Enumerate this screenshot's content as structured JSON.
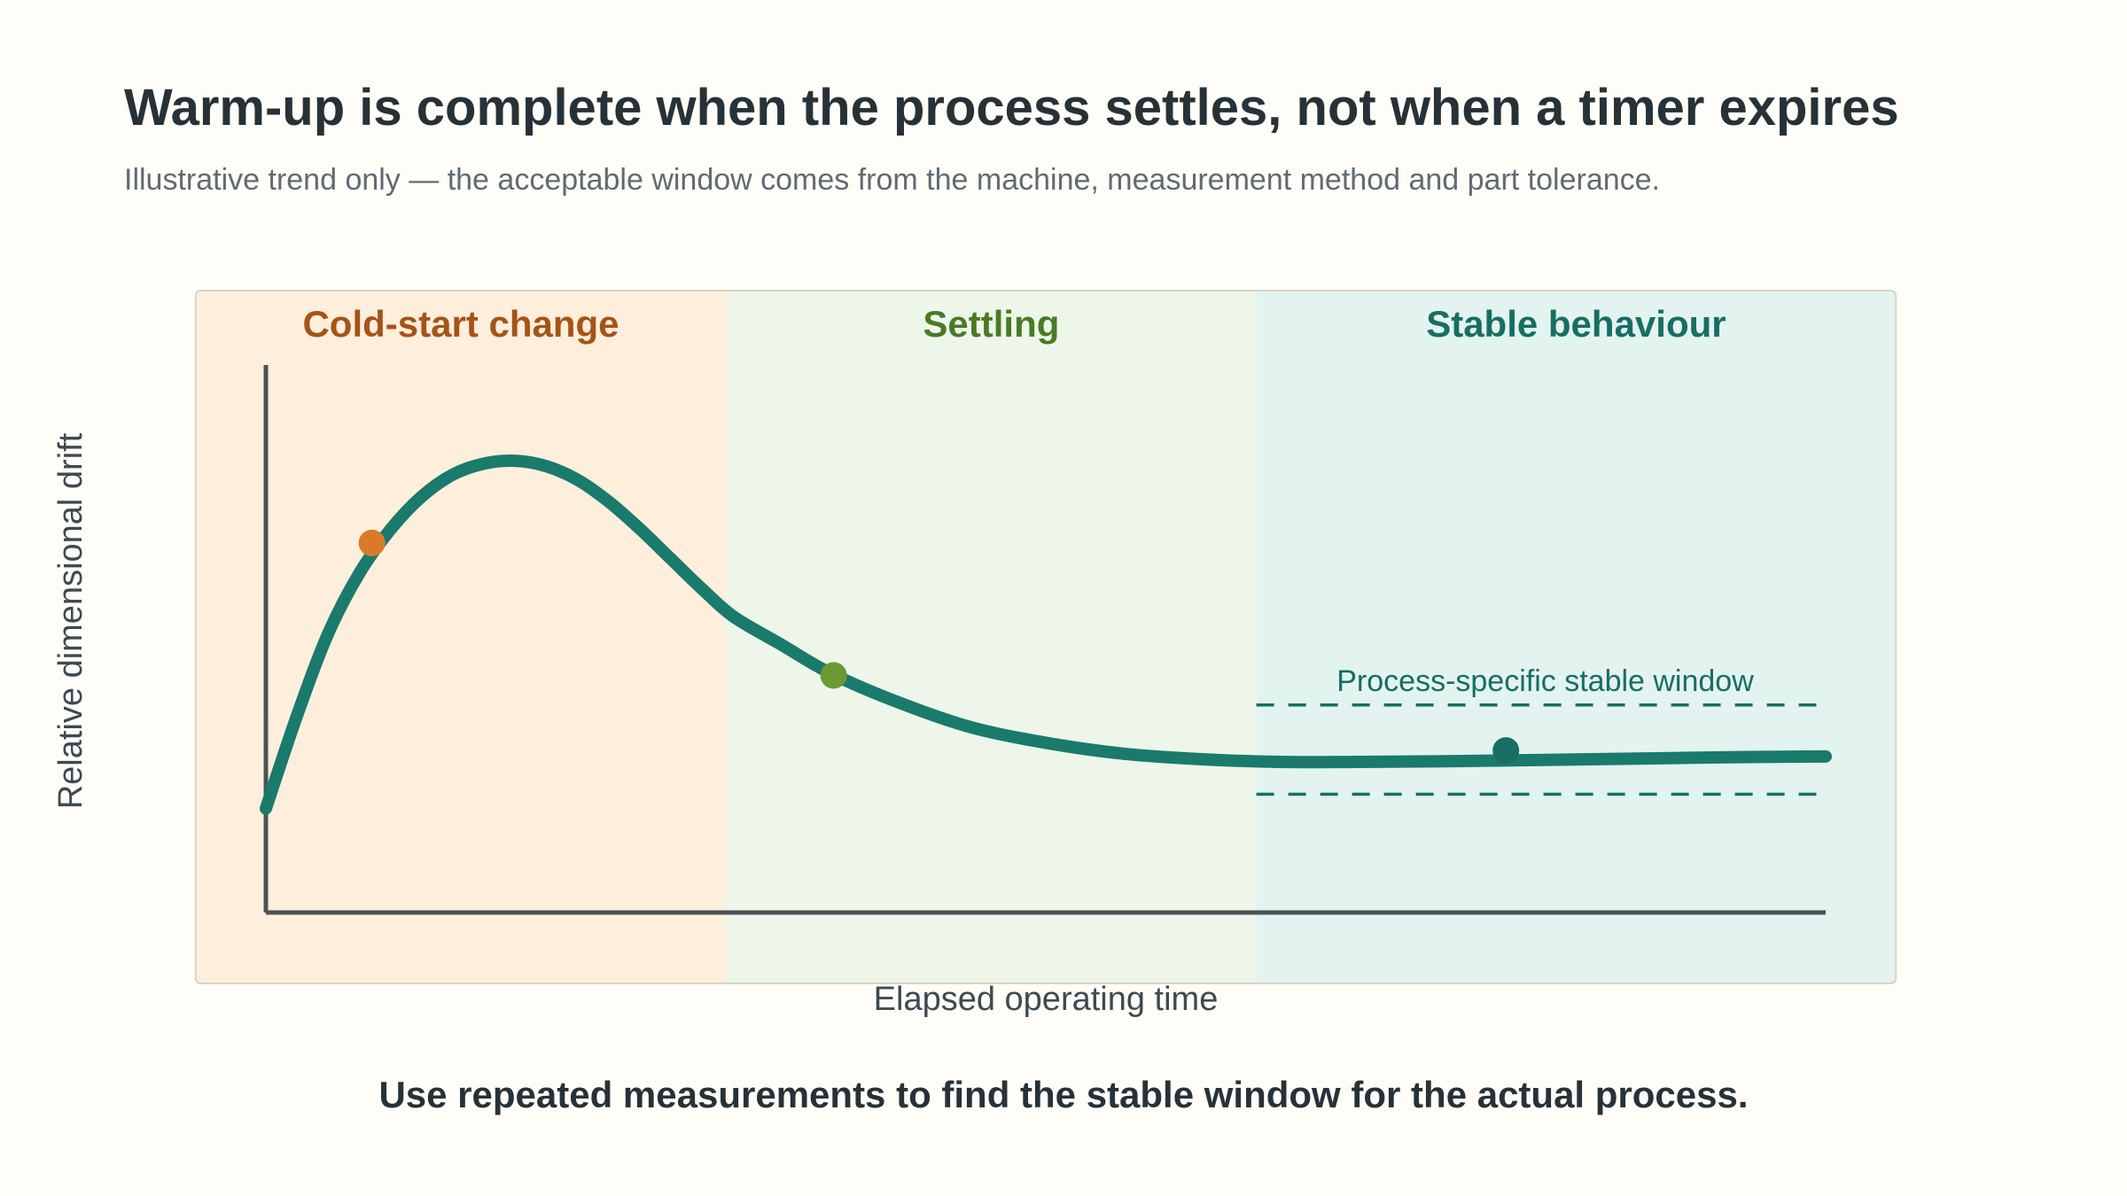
{
  "title": "Warm-up is complete when the process settles, not when a timer expires",
  "subtitle": "Illustrative trend only — the acceptable window comes from the machine, measurement method and part tolerance.",
  "takeaway": "Use repeated measurements to find the stable window for the actual process.",
  "chart_data": {
    "type": "line",
    "xlabel": "Elapsed operating time",
    "ylabel": "Relative dimensional drift",
    "xlim": [
      0,
      100
    ],
    "ylim": [
      0,
      100
    ],
    "grid": false,
    "phases": [
      {
        "label": "Cold-start change",
        "x_start": -4.5,
        "x_end": 29.5,
        "fill": "#fdefdc",
        "label_color": "#a65316"
      },
      {
        "label": "Settling",
        "x_start": 29.5,
        "x_end": 63.5,
        "fill": "#eef6ea",
        "label_color": "#4b7a26"
      },
      {
        "label": "Stable behaviour",
        "x_start": 63.5,
        "x_end": 104.5,
        "fill": "#e3f3f0",
        "label_color": "#176e63"
      }
    ],
    "series": [
      {
        "color": "#1a7a6c",
        "x": [
          0,
          2,
          4,
          6,
          8,
          10,
          12,
          14,
          16,
          18,
          20,
          22,
          24,
          26,
          28,
          30,
          33,
          36,
          40,
          45,
          50,
          55,
          60,
          65,
          70,
          75,
          80,
          85,
          90,
          95,
          100
        ],
        "y": [
          19,
          36,
          51,
          62,
          70,
          76,
          80,
          82,
          82.5,
          81.5,
          79,
          75,
          70,
          64.5,
          59,
          54,
          49,
          44,
          39,
          34,
          31,
          29,
          28,
          27.5,
          27.5,
          27.6,
          27.8,
          28,
          28.2,
          28.4,
          28.5
        ]
      }
    ],
    "markers": [
      {
        "x": 6.8,
        "y": 67.5,
        "color": "#d97a2b"
      },
      {
        "x": 36.4,
        "y": 43.3,
        "color": "#6a9a35"
      },
      {
        "x": 79.5,
        "y": 29.6,
        "color": "#176e63"
      }
    ],
    "stable_window": {
      "label": "Process-specific stable window",
      "x_start": 63.5,
      "x_end": 99.4,
      "y_upper": 37.9,
      "y_lower": 21.6,
      "color": "#176e63"
    }
  }
}
